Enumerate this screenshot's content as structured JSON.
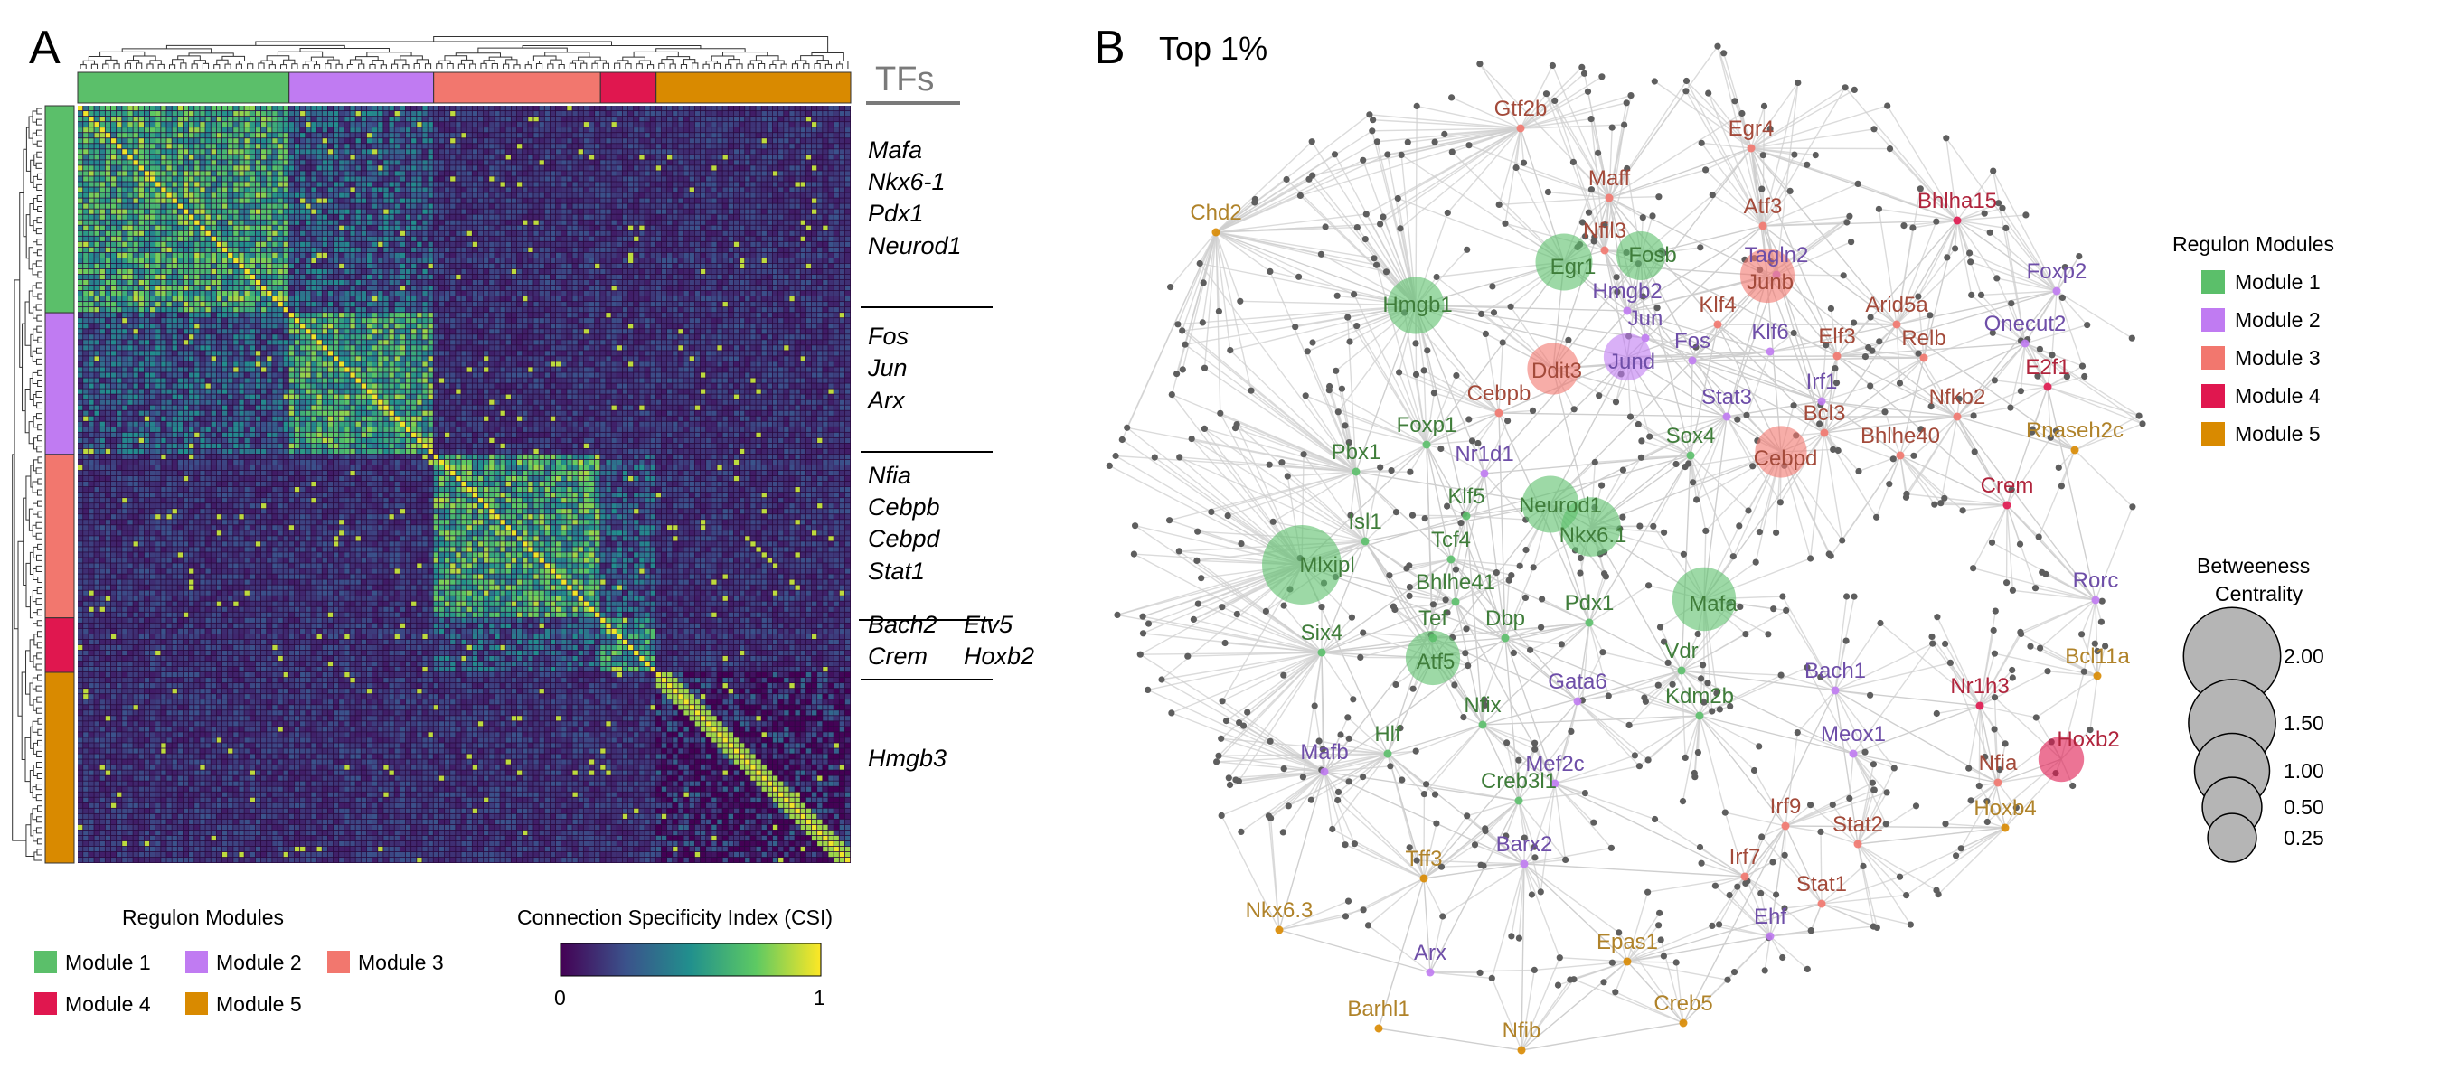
{
  "panel_a": {
    "letter": "A",
    "tfs_heading": "TFs",
    "tf_groups": [
      [
        "Mafa",
        "Nkx6-1",
        "Pdx1",
        "Neurod1"
      ],
      [
        "Fos",
        "Jun",
        "Arx"
      ],
      [
        "Nfia",
        "Cebpb",
        "Cebpd",
        "Stat1"
      ],
      [
        "Bach2",
        "Etv5",
        "Crem",
        "Hoxb2"
      ],
      [
        "Hmgb3"
      ]
    ],
    "module_legend_title": "Regulon Modules",
    "colorbar_title": "Connection Specificity Index (CSI)",
    "colorbar_min": "0",
    "colorbar_max": "1"
  },
  "panel_b": {
    "letter": "B",
    "title": "Top 1%",
    "legend_modules_title": "Regulon Modules",
    "legend_size_title_line1": "Betweeness",
    "legend_size_title_line2": "Centrality"
  },
  "modules": [
    {
      "name": "Module 1",
      "color": "#5bbf6a"
    },
    {
      "name": "Module 2",
      "color": "#c07bf2"
    },
    {
      "name": "Module 3",
      "color": "#f2776e"
    },
    {
      "name": "Module 4",
      "color": "#e0174f"
    },
    {
      "name": "Module 5",
      "color": "#d98a00"
    }
  ],
  "label_colors": {
    "m1": "#3f7d3a",
    "m2": "#6e4ea8",
    "m3": "#a34a3a",
    "m4": "#b0243c",
    "m5": "#b0832a"
  },
  "chart_data": [
    {
      "type": "heatmap",
      "title": "",
      "value_range": [
        0,
        1
      ],
      "colormap": "viridis",
      "row_module_counts": [
        38,
        26,
        30,
        10,
        35
      ],
      "col_module_counts": [
        38,
        26,
        30,
        10,
        35
      ],
      "annotated_tfs": [
        "Mafa",
        "Nkx6-1",
        "Pdx1",
        "Neurod1",
        "Fos",
        "Jun",
        "Arx",
        "Nfia",
        "Cebpb",
        "Cebpd",
        "Stat1",
        "Bach2",
        "Etv5",
        "Crem",
        "Hoxb2",
        "Hmgb3"
      ]
    },
    {
      "type": "network",
      "title": "Top 1%",
      "size_legend": [
        {
          "value": 2.0,
          "label": "2.00"
        },
        {
          "value": 1.5,
          "label": "1.50"
        },
        {
          "value": 1.0,
          "label": "1.00"
        },
        {
          "value": 0.5,
          "label": "0.50"
        },
        {
          "value": 0.25,
          "label": "0.25"
        }
      ],
      "hub_nodes": [
        {
          "label": "Mlxipl",
          "module": 1,
          "centrality": 2.0
        },
        {
          "label": "Mafa",
          "module": 1,
          "centrality": 1.1
        },
        {
          "label": "Nkx6.1",
          "module": 1,
          "centrality": 0.9
        },
        {
          "label": "Neurod1",
          "module": 1,
          "centrality": 0.8
        },
        {
          "label": "Egr1",
          "module": 1,
          "centrality": 0.8
        },
        {
          "label": "Hmgb1",
          "module": 1,
          "centrality": 0.8
        },
        {
          "label": "Atf5",
          "module": 1,
          "centrality": 0.7
        },
        {
          "label": "Fosb",
          "module": 1,
          "centrality": 0.5
        },
        {
          "label": "Junb",
          "module": 3,
          "centrality": 0.7
        },
        {
          "label": "Cebpd",
          "module": 3,
          "centrality": 0.6
        },
        {
          "label": "Ddit3",
          "module": 3,
          "centrality": 0.6
        },
        {
          "label": "Jund",
          "module": 2,
          "centrality": 0.45
        },
        {
          "label": "Hoxb2",
          "module": 4,
          "centrality": 0.4
        }
      ],
      "labels": [
        {
          "text": "Gtf2b",
          "m": "m3"
        },
        {
          "text": "Egr4",
          "m": "m3"
        },
        {
          "text": "Maff",
          "m": "m3"
        },
        {
          "text": "Chd2",
          "m": "m5"
        },
        {
          "text": "Nfil3",
          "m": "m3"
        },
        {
          "text": "Atf3",
          "m": "m3"
        },
        {
          "text": "Bhlha15",
          "m": "m4"
        },
        {
          "text": "Egr1",
          "m": "m1"
        },
        {
          "text": "Fosb",
          "m": "m1"
        },
        {
          "text": "Tagln2",
          "m": "m2"
        },
        {
          "text": "Junb",
          "m": "m3"
        },
        {
          "text": "Foxp2",
          "m": "m2"
        },
        {
          "text": "Hmgb1",
          "m": "m1"
        },
        {
          "text": "Hmgb2",
          "m": "m2"
        },
        {
          "text": "Klf4",
          "m": "m3"
        },
        {
          "text": "Arid5a",
          "m": "m3"
        },
        {
          "text": "Jun",
          "m": "m2"
        },
        {
          "text": "Onecut2",
          "m": "m2"
        },
        {
          "text": "Fos",
          "m": "m2"
        },
        {
          "text": "Klf6",
          "m": "m2"
        },
        {
          "text": "Elf3",
          "m": "m3"
        },
        {
          "text": "Relb",
          "m": "m3"
        },
        {
          "text": "Ddit3",
          "m": "m3"
        },
        {
          "text": "Jund",
          "m": "m2"
        },
        {
          "text": "E2f1",
          "m": "m4"
        },
        {
          "text": "Irf1",
          "m": "m2"
        },
        {
          "text": "Cebpb",
          "m": "m3"
        },
        {
          "text": "Stat3",
          "m": "m2"
        },
        {
          "text": "Nfkb2",
          "m": "m3"
        },
        {
          "text": "Bcl3",
          "m": "m3"
        },
        {
          "text": "Foxp1",
          "m": "m1"
        },
        {
          "text": "Sox4",
          "m": "m1"
        },
        {
          "text": "Bhlhe40",
          "m": "m3"
        },
        {
          "text": "Rnaseh2c",
          "m": "m5"
        },
        {
          "text": "Pbx1",
          "m": "m1"
        },
        {
          "text": "Nr1d1",
          "m": "m2"
        },
        {
          "text": "Cebpd",
          "m": "m3"
        },
        {
          "text": "Crem",
          "m": "m4"
        },
        {
          "text": "Klf5",
          "m": "m1"
        },
        {
          "text": "Neurod1",
          "m": "m1"
        },
        {
          "text": "Isl1",
          "m": "m1"
        },
        {
          "text": "Tcf4",
          "m": "m1"
        },
        {
          "text": "Nkx6.1",
          "m": "m1"
        },
        {
          "text": "Mlxipl",
          "m": "m1"
        },
        {
          "text": "Rorc",
          "m": "m2"
        },
        {
          "text": "Bhlhe41",
          "m": "m1"
        },
        {
          "text": "Pdx1",
          "m": "m1"
        },
        {
          "text": "Mafa",
          "m": "m1"
        },
        {
          "text": "Tef",
          "m": "m1"
        },
        {
          "text": "Dbp",
          "m": "m1"
        },
        {
          "text": "Six4",
          "m": "m1"
        },
        {
          "text": "Vdr",
          "m": "m1"
        },
        {
          "text": "Bcl11a",
          "m": "m5"
        },
        {
          "text": "Atf5",
          "m": "m1"
        },
        {
          "text": "Bach1",
          "m": "m2"
        },
        {
          "text": "Gata6",
          "m": "m2"
        },
        {
          "text": "Nr1h3",
          "m": "m4"
        },
        {
          "text": "Kdm2b",
          "m": "m1"
        },
        {
          "text": "Nfix",
          "m": "m1"
        },
        {
          "text": "Meox1",
          "m": "m2"
        },
        {
          "text": "Hoxb2",
          "m": "m4"
        },
        {
          "text": "Hlf",
          "m": "m1"
        },
        {
          "text": "Mafb",
          "m": "m2"
        },
        {
          "text": "Nfia",
          "m": "m3"
        },
        {
          "text": "Mef2c",
          "m": "m2"
        },
        {
          "text": "Creb3l1",
          "m": "m1"
        },
        {
          "text": "Hoxb4",
          "m": "m5"
        },
        {
          "text": "Irf9",
          "m": "m3"
        },
        {
          "text": "Stat2",
          "m": "m3"
        },
        {
          "text": "Tff3",
          "m": "m5"
        },
        {
          "text": "Barx2",
          "m": "m2"
        },
        {
          "text": "Irf7",
          "m": "m3"
        },
        {
          "text": "Stat1",
          "m": "m3"
        },
        {
          "text": "Nkx6.3",
          "m": "m5"
        },
        {
          "text": "Ehf",
          "m": "m2"
        },
        {
          "text": "Arx",
          "m": "m2"
        },
        {
          "text": "Epas1",
          "m": "m5"
        },
        {
          "text": "Barhl1",
          "m": "m5"
        },
        {
          "text": "Creb5",
          "m": "m5"
        },
        {
          "text": "Nfib",
          "m": "m5"
        }
      ]
    }
  ]
}
